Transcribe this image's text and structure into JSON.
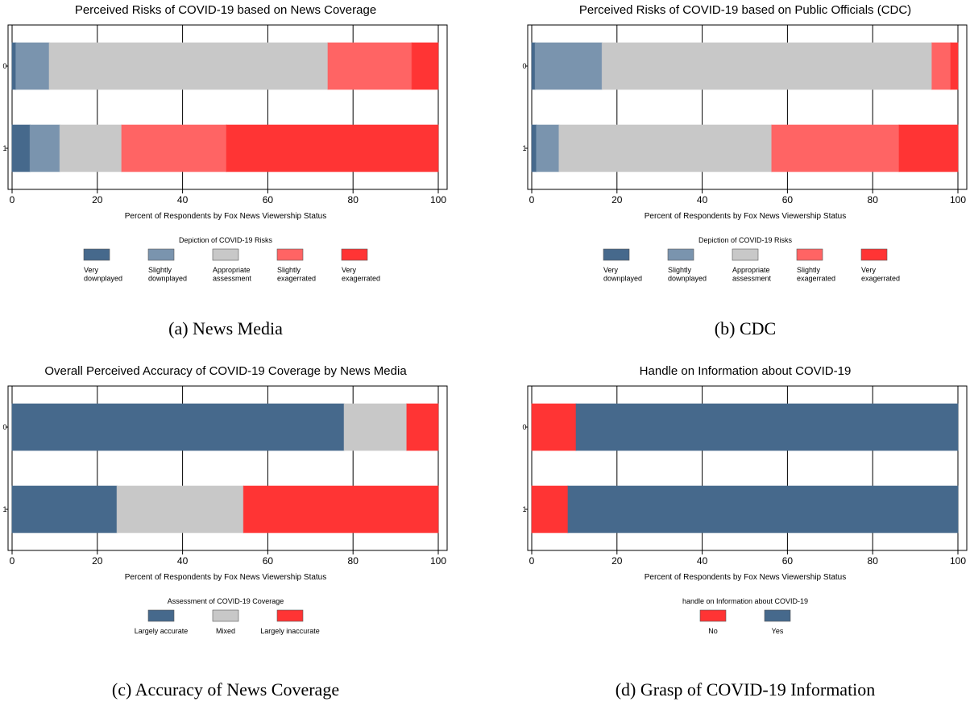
{
  "chart_data": [
    {
      "type": "bar",
      "orientation": "horizontal",
      "stacked": true,
      "title": "Perceived Risks of COVID-19 based on News Coverage",
      "xlabel": "Percent of Respondents by Fox News Viewership Status",
      "legend_title": "Depiction of COVID-19 Risks",
      "caption": "(a) News Media",
      "categories": [
        "0",
        "1"
      ],
      "xlim": [
        0,
        100
      ],
      "xticks": [
        0,
        20,
        40,
        60,
        80,
        100
      ],
      "grid": true,
      "series": [
        {
          "name": "Very\ndownplayed",
          "color": "#46698c",
          "values": [
            0.9,
            4.2
          ]
        },
        {
          "name": "Slightly\ndownplayed",
          "color": "#7a94ae",
          "values": [
            7.8,
            7.0
          ]
        },
        {
          "name": "Appropriate\nassessment",
          "color": "#c8c8c8",
          "values": [
            65.4,
            14.5
          ]
        },
        {
          "name": "Slightly\nexagerrated",
          "color": "#ff6464",
          "values": [
            19.7,
            24.6
          ]
        },
        {
          "name": "Very\nexagerrated",
          "color": "#ff3434",
          "values": [
            6.2,
            49.7
          ]
        }
      ]
    },
    {
      "type": "bar",
      "orientation": "horizontal",
      "stacked": true,
      "title": "Perceived Risks of COVID-19 based on Public Officials (CDC)",
      "xlabel": "Percent of Respondents by Fox News Viewership Status",
      "legend_title": "Depiction of COVID-19 Risks",
      "caption": "(b) CDC",
      "categories": [
        "0",
        "1"
      ],
      "xlim": [
        0,
        100
      ],
      "xticks": [
        0,
        20,
        40,
        60,
        80,
        100
      ],
      "grid": true,
      "series": [
        {
          "name": "Very\ndownplayed",
          "color": "#46698c",
          "values": [
            0.8,
            1.1
          ]
        },
        {
          "name": "Slightly\ndownplayed",
          "color": "#7a94ae",
          "values": [
            15.7,
            5.3
          ]
        },
        {
          "name": "Appropriate\nassessment",
          "color": "#c8c8c8",
          "values": [
            77.4,
            49.9
          ]
        },
        {
          "name": "Slightly\nexagerrated",
          "color": "#ff6464",
          "values": [
            4.4,
            29.9
          ]
        },
        {
          "name": "Very\nexagerrated",
          "color": "#ff3434",
          "values": [
            1.7,
            13.8
          ]
        }
      ]
    },
    {
      "type": "bar",
      "orientation": "horizontal",
      "stacked": true,
      "title": "Overall Perceived Accuracy of COVID-19 Coverage by News Media",
      "xlabel": "Percent of Respondents by Fox News Viewership Status",
      "legend_title": "Assessment of COVID-19 Coverage",
      "caption": "(c) Accuracy of News Coverage",
      "categories": [
        "0",
        "1"
      ],
      "xlim": [
        0,
        100
      ],
      "xticks": [
        0,
        20,
        40,
        60,
        80,
        100
      ],
      "grid": true,
      "series": [
        {
          "name": "Largely accurate",
          "color": "#46698c",
          "values": [
            77.9,
            24.6
          ]
        },
        {
          "name": "Mixed",
          "color": "#c8c8c8",
          "values": [
            14.7,
            29.7
          ]
        },
        {
          "name": "Largely inaccurate",
          "color": "#ff3434",
          "values": [
            7.4,
            45.7
          ]
        }
      ]
    },
    {
      "type": "bar",
      "orientation": "horizontal",
      "stacked": true,
      "title": "Handle on Information about COVID-19",
      "xlabel": "Percent of Respondents by Fox News Viewership Status",
      "legend_title": "handle on Information about COVID-19",
      "caption": "(d) Grasp of COVID-19 Information",
      "categories": [
        "0",
        "1"
      ],
      "xlim": [
        0,
        100
      ],
      "xticks": [
        0,
        20,
        40,
        60,
        80,
        100
      ],
      "grid": true,
      "series": [
        {
          "name": "No",
          "color": "#ff3434",
          "values": [
            10.4,
            8.5
          ]
        },
        {
          "name": "Yes",
          "color": "#46698c",
          "values": [
            89.6,
            91.5
          ]
        }
      ]
    }
  ]
}
